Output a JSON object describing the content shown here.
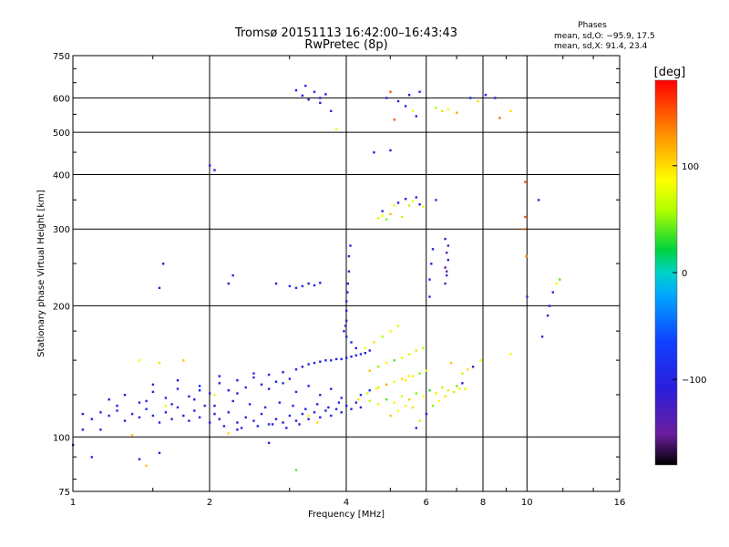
{
  "title": {
    "line1": "Tromsø 20151113 16:42:00–16:43:43",
    "line2": "RwPretec (8p)"
  },
  "phases": {
    "heading": "Phases",
    "o_line": "mean, sd,O: −95.9, 17.5",
    "x_line": "mean, sd,X:  91.4, 23.4"
  },
  "colorbar": {
    "unit": "[deg]",
    "range": [
      -180,
      180
    ],
    "ticks": [
      {
        "value": 100,
        "label": "100"
      },
      {
        "value": 0,
        "label": "0"
      },
      {
        "value": -100,
        "label": "−100"
      }
    ]
  },
  "chart_data": {
    "type": "scatter",
    "title": "Tromsø 20151113 16:42:00–16:43:43 RwPretec (8p)",
    "xlabel": "Frequency [MHz]",
    "ylabel": "Stationary phase Virtual Height [km]",
    "xscale": "log",
    "yscale": "log",
    "xlim": [
      1,
      16
    ],
    "ylim": [
      75,
      750
    ],
    "grid": true,
    "x_ticks": [
      {
        "value": 1,
        "label": "1"
      },
      {
        "value": 2,
        "label": "2"
      },
      {
        "value": 4,
        "label": "4"
      },
      {
        "value": 6,
        "label": "6"
      },
      {
        "value": 8,
        "label": "8"
      },
      {
        "value": 10,
        "label": "10"
      },
      {
        "value": 16,
        "label": "16"
      }
    ],
    "y_ticks": [
      {
        "value": 75,
        "label": "75"
      },
      {
        "value": 100,
        "label": "100"
      },
      {
        "value": 200,
        "label": "200"
      },
      {
        "value": 300,
        "label": "300"
      },
      {
        "value": 400,
        "label": "400"
      },
      {
        "value": 500,
        "label": "500"
      },
      {
        "value": 600,
        "label": "600"
      },
      {
        "value": 750,
        "label": "750"
      }
    ],
    "color_scale": "phase [deg], -180 to 180",
    "points": [
      [
        1.05,
        113,
        -110
      ],
      [
        1.1,
        110,
        -105
      ],
      [
        1.15,
        114,
        -100
      ],
      [
        1.2,
        112,
        -120
      ],
      [
        1.25,
        115,
        -95
      ],
      [
        1.3,
        109,
        -110
      ],
      [
        1.35,
        113,
        -100
      ],
      [
        1.4,
        111,
        -115
      ],
      [
        1.45,
        116,
        -90
      ],
      [
        1.5,
        112,
        -105
      ],
      [
        1.55,
        108,
        -110
      ],
      [
        1.6,
        114,
        -100
      ],
      [
        1.65,
        110,
        -120
      ],
      [
        1.7,
        117,
        -95
      ],
      [
        1.75,
        112,
        -110
      ],
      [
        1.8,
        109,
        -100
      ],
      [
        1.85,
        115,
        -105
      ],
      [
        1.9,
        111,
        -115
      ],
      [
        1.95,
        118,
        -95
      ],
      [
        2.0,
        108,
        -110
      ],
      [
        2.05,
        113,
        -100
      ],
      [
        2.1,
        110,
        -105
      ],
      [
        2.2,
        114,
        -110
      ],
      [
        2.3,
        108,
        -100
      ],
      [
        2.4,
        111,
        -120
      ],
      [
        2.5,
        109,
        -95
      ],
      [
        2.6,
        113,
        -110
      ],
      [
        2.7,
        107,
        -100
      ],
      [
        2.8,
        110,
        -105
      ],
      [
        2.9,
        108,
        -110
      ],
      [
        3.0,
        112,
        -100
      ],
      [
        3.1,
        109,
        -115
      ],
      [
        3.2,
        113,
        -95
      ],
      [
        3.3,
        110,
        -110
      ],
      [
        3.4,
        114,
        -100
      ],
      [
        3.5,
        111,
        -105
      ],
      [
        3.6,
        115,
        -110
      ],
      [
        3.7,
        112,
        -100
      ],
      [
        3.8,
        116,
        -95
      ],
      [
        3.9,
        114,
        -110
      ],
      [
        4.0,
        118,
        -100
      ],
      [
        4.1,
        116,
        -105
      ],
      [
        4.2,
        120,
        -110
      ],
      [
        4.3,
        117,
        -95
      ],
      [
        4.5,
        121,
        60
      ],
      [
        4.7,
        119,
        80
      ],
      [
        4.9,
        122,
        40
      ],
      [
        5.1,
        120,
        90
      ],
      [
        5.3,
        124,
        70
      ],
      [
        5.5,
        122,
        110
      ],
      [
        5.7,
        126,
        50
      ],
      [
        5.9,
        124,
        85
      ],
      [
        6.1,
        128,
        30
      ],
      [
        6.3,
        126,
        95
      ],
      [
        6.5,
        130,
        60
      ],
      [
        6.7,
        128,
        100
      ],
      [
        7.0,
        131,
        45
      ],
      [
        7.3,
        129,
        75
      ],
      [
        1.2,
        122,
        -100
      ],
      [
        1.3,
        125,
        -110
      ],
      [
        1.4,
        120,
        -95
      ],
      [
        1.5,
        127,
        -105
      ],
      [
        1.6,
        123,
        -110
      ],
      [
        1.7,
        129,
        -100
      ],
      [
        1.8,
        124,
        -115
      ],
      [
        1.9,
        131,
        -95
      ],
      [
        2.0,
        126,
        -110
      ],
      [
        2.1,
        133,
        -100
      ],
      [
        2.2,
        128,
        -105
      ],
      [
        2.3,
        135,
        -110
      ],
      [
        2.4,
        130,
        -100
      ],
      [
        2.5,
        137,
        -95
      ],
      [
        2.6,
        132,
        -110
      ],
      [
        2.7,
        139,
        -100
      ],
      [
        2.8,
        134,
        -105
      ],
      [
        2.9,
        141,
        -110
      ],
      [
        3.0,
        136,
        -100
      ],
      [
        3.1,
        143,
        -95
      ],
      [
        3.2,
        145,
        -110
      ],
      [
        3.3,
        147,
        -100
      ],
      [
        3.4,
        148,
        -105
      ],
      [
        3.5,
        149,
        -110
      ],
      [
        3.6,
        150,
        -100
      ],
      [
        3.7,
        150,
        -95
      ],
      [
        3.8,
        151,
        -110
      ],
      [
        3.9,
        151,
        -100
      ],
      [
        4.0,
        152,
        -105
      ],
      [
        4.1,
        153,
        -110
      ],
      [
        4.2,
        154,
        -100
      ],
      [
        4.3,
        155,
        -95
      ],
      [
        4.4,
        156,
        -110
      ],
      [
        4.5,
        158,
        -100
      ],
      [
        1.5,
        132,
        -100
      ],
      [
        1.7,
        135,
        -110
      ],
      [
        1.9,
        128,
        -95
      ],
      [
        2.1,
        138,
        -105
      ],
      [
        2.3,
        126,
        -110
      ],
      [
        2.5,
        140,
        -100
      ],
      [
        2.7,
        129,
        -115
      ],
      [
        2.9,
        133,
        -95
      ],
      [
        3.1,
        127,
        -110
      ],
      [
        3.3,
        131,
        -100
      ],
      [
        3.5,
        125,
        -105
      ],
      [
        3.7,
        129,
        -110
      ],
      [
        3.9,
        123,
        -100
      ],
      [
        1.25,
        118,
        -105
      ],
      [
        1.45,
        121,
        -100
      ],
      [
        1.65,
        119,
        -110
      ],
      [
        1.85,
        122,
        -95
      ],
      [
        2.05,
        118,
        -105
      ],
      [
        2.25,
        121,
        -110
      ],
      [
        2.45,
        119,
        -100
      ],
      [
        2.65,
        117,
        -95
      ],
      [
        2.85,
        120,
        -110
      ],
      [
        3.05,
        118,
        -100
      ],
      [
        3.25,
        116,
        -105
      ],
      [
        3.45,
        119,
        -110
      ],
      [
        3.65,
        117,
        -100
      ],
      [
        3.85,
        120,
        -95
      ],
      [
        2.15,
        106,
        -100
      ],
      [
        2.35,
        105,
        -110
      ],
      [
        2.55,
        106,
        -95
      ],
      [
        2.75,
        107,
        -105
      ],
      [
        2.95,
        105,
        -110
      ],
      [
        3.15,
        107,
        -100
      ],
      [
        3.95,
        175,
        -110
      ],
      [
        4.0,
        185,
        -100
      ],
      [
        4.0,
        195,
        -105
      ],
      [
        4.0,
        205,
        -110
      ],
      [
        4.02,
        215,
        -100
      ],
      [
        4.03,
        225,
        -95
      ],
      [
        4.05,
        240,
        -110
      ],
      [
        4.05,
        260,
        -100
      ],
      [
        4.08,
        275,
        -105
      ],
      [
        3.98,
        180,
        -110
      ],
      [
        4.0,
        170,
        -100
      ],
      [
        4.1,
        165,
        -95
      ],
      [
        4.2,
        160,
        -110
      ],
      [
        4.4,
        160,
        80
      ],
      [
        4.6,
        165,
        100
      ],
      [
        4.8,
        170,
        60
      ],
      [
        5.0,
        175,
        90
      ],
      [
        5.2,
        180,
        70
      ],
      [
        4.5,
        142,
        110
      ],
      [
        4.7,
        145,
        50
      ],
      [
        4.9,
        148,
        90
      ],
      [
        5.1,
        150,
        40
      ],
      [
        5.3,
        152,
        85
      ],
      [
        5.5,
        155,
        70
      ],
      [
        5.7,
        158,
        100
      ],
      [
        5.9,
        160,
        60
      ],
      [
        5.4,
        135,
        80
      ],
      [
        5.6,
        138,
        95
      ],
      [
        5.8,
        140,
        50
      ],
      [
        6.0,
        142,
        75
      ],
      [
        4.3,
        125,
        -90
      ],
      [
        4.5,
        128,
        -80
      ],
      [
        4.7,
        130,
        60
      ],
      [
        4.9,
        132,
        120
      ],
      [
        5.1,
        134,
        80
      ],
      [
        5.3,
        136,
        100
      ],
      [
        5.5,
        138,
        90
      ],
      [
        6.6,
        225,
        -140
      ],
      [
        6.65,
        235,
        -130
      ],
      [
        6.6,
        245,
        -145
      ],
      [
        6.7,
        255,
        -125
      ],
      [
        6.65,
        265,
        -140
      ],
      [
        6.7,
        275,
        -135
      ],
      [
        6.6,
        285,
        -130
      ],
      [
        6.65,
        240,
        -150
      ],
      [
        6.1,
        230,
        -100
      ],
      [
        6.15,
        250,
        -95
      ],
      [
        6.2,
        270,
        -110
      ],
      [
        6.1,
        210,
        -105
      ],
      [
        5.2,
        345,
        -100
      ],
      [
        5.4,
        352,
        -110
      ],
      [
        5.5,
        340,
        60
      ],
      [
        5.6,
        348,
        80
      ],
      [
        5.7,
        355,
        -95
      ],
      [
        5.8,
        342,
        -105
      ],
      [
        5.9,
        338,
        90
      ],
      [
        4.7,
        318,
        70
      ],
      [
        4.8,
        322,
        90
      ],
      [
        4.9,
        316,
        50
      ],
      [
        5.0,
        325,
        110
      ],
      [
        6.3,
        350,
        -100
      ],
      [
        4.8,
        330,
        -110
      ],
      [
        5.1,
        340,
        80
      ],
      [
        5.3,
        320,
        60
      ],
      [
        3.2,
        608,
        -100
      ],
      [
        3.3,
        595,
        -110
      ],
      [
        3.4,
        620,
        -95
      ],
      [
        3.5,
        600,
        -105
      ],
      [
        3.6,
        612,
        -110
      ],
      [
        3.1,
        625,
        -100
      ],
      [
        3.25,
        640,
        -95
      ],
      [
        3.5,
        585,
        -110
      ],
      [
        3.7,
        560,
        -105
      ],
      [
        4.9,
        600,
        -100
      ],
      [
        5.0,
        620,
        150
      ],
      [
        5.2,
        590,
        -110
      ],
      [
        5.4,
        575,
        -95
      ],
      [
        5.5,
        610,
        -105
      ],
      [
        5.6,
        560,
        80
      ],
      [
        5.7,
        545,
        -110
      ],
      [
        5.1,
        535,
        150
      ],
      [
        5.8,
        620,
        -100
      ],
      [
        6.3,
        570,
        60
      ],
      [
        6.5,
        560,
        100
      ],
      [
        6.7,
        565,
        80
      ],
      [
        7.0,
        555,
        120
      ],
      [
        7.5,
        600,
        -100
      ],
      [
        7.8,
        590,
        100
      ],
      [
        8.1,
        610,
        -110
      ],
      [
        8.5,
        600,
        -95
      ],
      [
        8.7,
        540,
        140
      ],
      [
        9.2,
        560,
        100
      ],
      [
        4.6,
        450,
        -100
      ],
      [
        5.0,
        455,
        -110
      ],
      [
        3.8,
        510,
        80
      ],
      [
        2.0,
        420,
        -110
      ],
      [
        2.05,
        410,
        -100
      ],
      [
        2.25,
        235,
        -95
      ],
      [
        2.2,
        225,
        -105
      ],
      [
        1.58,
        250,
        -110
      ],
      [
        1.55,
        220,
        -100
      ],
      [
        2.8,
        225,
        -105
      ],
      [
        3.0,
        222,
        -110
      ],
      [
        3.1,
        220,
        -100
      ],
      [
        3.2,
        222,
        -95
      ],
      [
        3.3,
        225,
        -110
      ],
      [
        3.4,
        223,
        -100
      ],
      [
        3.5,
        226,
        -105
      ],
      [
        9.9,
        385,
        150
      ],
      [
        9.9,
        320,
        150
      ],
      [
        9.85,
        300,
        140
      ],
      [
        9.95,
        260,
        130
      ],
      [
        10.6,
        350,
        -100
      ],
      [
        10.0,
        210,
        -100
      ],
      [
        11.1,
        190,
        -110
      ],
      [
        11.2,
        200,
        -100
      ],
      [
        11.4,
        215,
        -95
      ],
      [
        11.6,
        225,
        90
      ],
      [
        11.8,
        230,
        40
      ],
      [
        10.8,
        170,
        -100
      ],
      [
        7.2,
        140,
        60
      ],
      [
        7.4,
        143,
        100
      ],
      [
        7.6,
        145,
        -100
      ],
      [
        7.9,
        150,
        80
      ],
      [
        9.2,
        155,
        90
      ],
      [
        6.8,
        148,
        110
      ],
      [
        1.1,
        90,
        -100
      ],
      [
        1.4,
        89,
        -110
      ],
      [
        1.55,
        92,
        -95
      ],
      [
        1.45,
        86,
        110
      ],
      [
        3.1,
        84,
        40
      ],
      [
        2.7,
        97,
        -100
      ],
      [
        1.0,
        96,
        -105
      ],
      [
        1.05,
        104,
        -110
      ],
      [
        1.15,
        104,
        -100
      ],
      [
        1.35,
        101,
        110
      ],
      [
        1.6,
        118,
        90
      ],
      [
        1.4,
        150,
        90
      ],
      [
        1.55,
        148,
        100
      ],
      [
        1.75,
        150,
        110
      ],
      [
        2.05,
        125,
        80
      ],
      [
        2.2,
        102,
        100
      ],
      [
        2.3,
        104,
        -100
      ],
      [
        3.45,
        108,
        100
      ],
      [
        3.3,
        112,
        90
      ],
      [
        5.0,
        112,
        110
      ],
      [
        5.2,
        115,
        80
      ],
      [
        5.4,
        118,
        90
      ],
      [
        5.6,
        117,
        100
      ],
      [
        5.8,
        109,
        60
      ],
      [
        5.7,
        105,
        -100
      ],
      [
        6.0,
        113,
        -105
      ],
      [
        6.2,
        118,
        50
      ],
      [
        6.4,
        121,
        80
      ],
      [
        6.6,
        124,
        100
      ],
      [
        6.9,
        127,
        60
      ],
      [
        7.1,
        129,
        90
      ],
      [
        7.2,
        133,
        -100
      ],
      [
        4.25,
        122,
        100
      ],
      [
        4.45,
        126,
        70
      ],
      [
        4.65,
        129,
        90
      ]
    ]
  }
}
